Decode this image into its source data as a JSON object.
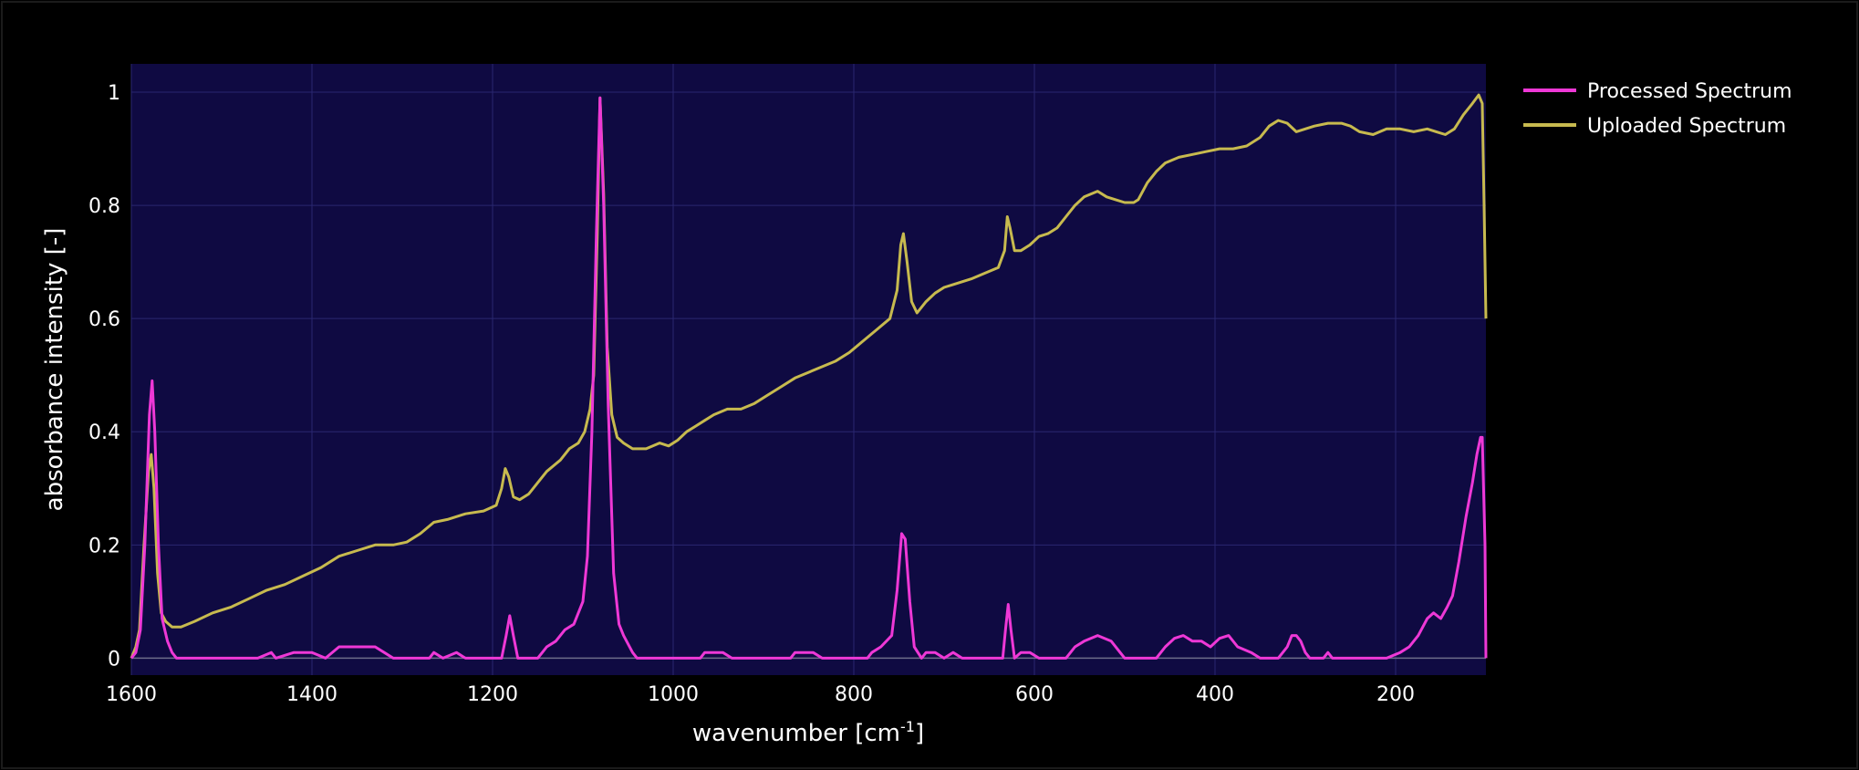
{
  "chart_data": {
    "type": "line",
    "title": "",
    "xlabel": "wavenumber [cm",
    "xlabel_sup": "-1",
    "xlabel_end": "]",
    "ylabel": "absorbance intensity [-]",
    "xlim": [
      1600,
      100
    ],
    "x_reversed": true,
    "ylim": [
      -0.03,
      1.05
    ],
    "xticks": [
      1600,
      1400,
      1200,
      1000,
      800,
      600,
      400,
      200
    ],
    "xtick_labels": [
      "1600",
      "1400",
      "1200",
      "1000",
      "800",
      "600",
      "400",
      "200"
    ],
    "yticks": [
      0,
      0.2,
      0.4,
      0.6,
      0.8,
      1
    ],
    "ytick_labels": [
      "0",
      "0.2",
      "0.4",
      "0.6",
      "0.8",
      "1"
    ],
    "grid": true,
    "legend_position": "top-right",
    "colors": {
      "plot_bg": "#0f0a42",
      "page_bg": "#000000"
    },
    "series": [
      {
        "name": "Processed Spectrum",
        "color": "#ee38d6",
        "points": [
          [
            1600,
            0
          ],
          [
            1595,
            0.01
          ],
          [
            1590,
            0.05
          ],
          [
            1585,
            0.2
          ],
          [
            1580,
            0.43
          ],
          [
            1577,
            0.49
          ],
          [
            1574,
            0.4
          ],
          [
            1570,
            0.2
          ],
          [
            1566,
            0.07
          ],
          [
            1560,
            0.03
          ],
          [
            1555,
            0.01
          ],
          [
            1550,
            0
          ],
          [
            1460,
            0
          ],
          [
            1445,
            0.01
          ],
          [
            1440,
            0
          ],
          [
            1420,
            0.01
          ],
          [
            1400,
            0.01
          ],
          [
            1385,
            0
          ],
          [
            1370,
            0.02
          ],
          [
            1355,
            0.02
          ],
          [
            1345,
            0.02
          ],
          [
            1330,
            0.02
          ],
          [
            1320,
            0.01
          ],
          [
            1310,
            0
          ],
          [
            1270,
            0
          ],
          [
            1265,
            0.01
          ],
          [
            1255,
            0
          ],
          [
            1240,
            0.01
          ],
          [
            1230,
            0
          ],
          [
            1190,
            0
          ],
          [
            1185,
            0.04
          ],
          [
            1181,
            0.075
          ],
          [
            1177,
            0.04
          ],
          [
            1172,
            0
          ],
          [
            1150,
            0
          ],
          [
            1145,
            0.01
          ],
          [
            1140,
            0.02
          ],
          [
            1130,
            0.03
          ],
          [
            1120,
            0.05
          ],
          [
            1110,
            0.06
          ],
          [
            1100,
            0.1
          ],
          [
            1095,
            0.18
          ],
          [
            1090,
            0.4
          ],
          [
            1085,
            0.75
          ],
          [
            1081,
            0.99
          ],
          [
            1077,
            0.8
          ],
          [
            1072,
            0.45
          ],
          [
            1066,
            0.15
          ],
          [
            1060,
            0.06
          ],
          [
            1055,
            0.04
          ],
          [
            1045,
            0.01
          ],
          [
            1040,
            0
          ],
          [
            970,
            0
          ],
          [
            965,
            0.01
          ],
          [
            955,
            0.01
          ],
          [
            945,
            0.01
          ],
          [
            935,
            0
          ],
          [
            870,
            0
          ],
          [
            865,
            0.01
          ],
          [
            855,
            0.01
          ],
          [
            845,
            0.01
          ],
          [
            835,
            0
          ],
          [
            785,
            0
          ],
          [
            780,
            0.01
          ],
          [
            770,
            0.02
          ],
          [
            758,
            0.04
          ],
          [
            752,
            0.12
          ],
          [
            747,
            0.22
          ],
          [
            743,
            0.21
          ],
          [
            738,
            0.1
          ],
          [
            733,
            0.02
          ],
          [
            725,
            0
          ],
          [
            720,
            0.01
          ],
          [
            710,
            0.01
          ],
          [
            700,
            0
          ],
          [
            690,
            0.01
          ],
          [
            680,
            0
          ],
          [
            635,
            0
          ],
          [
            632,
            0.05
          ],
          [
            629,
            0.095
          ],
          [
            626,
            0.05
          ],
          [
            622,
            0
          ],
          [
            615,
            0.01
          ],
          [
            605,
            0.01
          ],
          [
            595,
            0
          ],
          [
            565,
            0
          ],
          [
            555,
            0.02
          ],
          [
            545,
            0.03
          ],
          [
            530,
            0.04
          ],
          [
            515,
            0.03
          ],
          [
            505,
            0.01
          ],
          [
            500,
            0
          ],
          [
            465,
            0
          ],
          [
            455,
            0.02
          ],
          [
            445,
            0.035
          ],
          [
            435,
            0.04
          ],
          [
            425,
            0.03
          ],
          [
            415,
            0.03
          ],
          [
            405,
            0.02
          ],
          [
            395,
            0.035
          ],
          [
            385,
            0.04
          ],
          [
            375,
            0.02
          ],
          [
            360,
            0.01
          ],
          [
            350,
            0
          ],
          [
            330,
            0
          ],
          [
            325,
            0.01
          ],
          [
            320,
            0.02
          ],
          [
            315,
            0.04
          ],
          [
            310,
            0.04
          ],
          [
            305,
            0.03
          ],
          [
            300,
            0.01
          ],
          [
            295,
            0
          ],
          [
            280,
            0
          ],
          [
            275,
            0.01
          ],
          [
            270,
            0
          ],
          [
            210,
            0
          ],
          [
            195,
            0.01
          ],
          [
            185,
            0.02
          ],
          [
            175,
            0.04
          ],
          [
            165,
            0.07
          ],
          [
            158,
            0.08
          ],
          [
            150,
            0.07
          ],
          [
            143,
            0.09
          ],
          [
            137,
            0.11
          ],
          [
            130,
            0.17
          ],
          [
            122,
            0.25
          ],
          [
            115,
            0.31
          ],
          [
            110,
            0.36
          ],
          [
            106,
            0.39
          ],
          [
            104,
            0.39
          ],
          [
            101,
            0.2
          ],
          [
            100,
            0
          ]
        ]
      },
      {
        "name": "Uploaded Spectrum",
        "color": "#c7ba4f",
        "points": [
          [
            1600,
            0
          ],
          [
            1595,
            0.02
          ],
          [
            1591,
            0.05
          ],
          [
            1586,
            0.2
          ],
          [
            1581,
            0.33
          ],
          [
            1578,
            0.36
          ],
          [
            1575,
            0.3
          ],
          [
            1571,
            0.15
          ],
          [
            1567,
            0.08
          ],
          [
            1562,
            0.065
          ],
          [
            1555,
            0.055
          ],
          [
            1545,
            0.055
          ],
          [
            1530,
            0.065
          ],
          [
            1510,
            0.08
          ],
          [
            1490,
            0.09
          ],
          [
            1470,
            0.105
          ],
          [
            1450,
            0.12
          ],
          [
            1430,
            0.13
          ],
          [
            1410,
            0.145
          ],
          [
            1390,
            0.16
          ],
          [
            1370,
            0.18
          ],
          [
            1350,
            0.19
          ],
          [
            1330,
            0.2
          ],
          [
            1310,
            0.2
          ],
          [
            1295,
            0.205
          ],
          [
            1280,
            0.22
          ],
          [
            1265,
            0.24
          ],
          [
            1250,
            0.245
          ],
          [
            1230,
            0.255
          ],
          [
            1210,
            0.26
          ],
          [
            1196,
            0.27
          ],
          [
            1190,
            0.3
          ],
          [
            1186,
            0.335
          ],
          [
            1182,
            0.32
          ],
          [
            1177,
            0.285
          ],
          [
            1170,
            0.28
          ],
          [
            1160,
            0.29
          ],
          [
            1150,
            0.31
          ],
          [
            1140,
            0.33
          ],
          [
            1125,
            0.35
          ],
          [
            1115,
            0.37
          ],
          [
            1105,
            0.38
          ],
          [
            1098,
            0.4
          ],
          [
            1092,
            0.44
          ],
          [
            1088,
            0.5
          ],
          [
            1084,
            0.75
          ],
          [
            1081,
            0.99
          ],
          [
            1077,
            0.82
          ],
          [
            1073,
            0.55
          ],
          [
            1068,
            0.43
          ],
          [
            1062,
            0.39
          ],
          [
            1055,
            0.38
          ],
          [
            1045,
            0.37
          ],
          [
            1030,
            0.37
          ],
          [
            1015,
            0.38
          ],
          [
            1005,
            0.375
          ],
          [
            995,
            0.385
          ],
          [
            985,
            0.4
          ],
          [
            975,
            0.41
          ],
          [
            965,
            0.42
          ],
          [
            955,
            0.43
          ],
          [
            940,
            0.44
          ],
          [
            925,
            0.44
          ],
          [
            910,
            0.45
          ],
          [
            895,
            0.465
          ],
          [
            880,
            0.48
          ],
          [
            865,
            0.495
          ],
          [
            850,
            0.505
          ],
          [
            835,
            0.515
          ],
          [
            820,
            0.525
          ],
          [
            805,
            0.54
          ],
          [
            790,
            0.56
          ],
          [
            775,
            0.58
          ],
          [
            760,
            0.6
          ],
          [
            752,
            0.65
          ],
          [
            748,
            0.73
          ],
          [
            745,
            0.75
          ],
          [
            741,
            0.7
          ],
          [
            736,
            0.63
          ],
          [
            730,
            0.61
          ],
          [
            720,
            0.63
          ],
          [
            710,
            0.645
          ],
          [
            700,
            0.655
          ],
          [
            690,
            0.66
          ],
          [
            680,
            0.665
          ],
          [
            670,
            0.67
          ],
          [
            655,
            0.68
          ],
          [
            640,
            0.69
          ],
          [
            633,
            0.72
          ],
          [
            630,
            0.78
          ],
          [
            627,
            0.76
          ],
          [
            622,
            0.72
          ],
          [
            615,
            0.72
          ],
          [
            605,
            0.73
          ],
          [
            595,
            0.745
          ],
          [
            585,
            0.75
          ],
          [
            575,
            0.76
          ],
          [
            565,
            0.78
          ],
          [
            555,
            0.8
          ],
          [
            545,
            0.815
          ],
          [
            530,
            0.825
          ],
          [
            520,
            0.815
          ],
          [
            510,
            0.81
          ],
          [
            500,
            0.805
          ],
          [
            490,
            0.805
          ],
          [
            485,
            0.81
          ],
          [
            475,
            0.84
          ],
          [
            465,
            0.86
          ],
          [
            455,
            0.875
          ],
          [
            440,
            0.885
          ],
          [
            425,
            0.89
          ],
          [
            410,
            0.895
          ],
          [
            395,
            0.9
          ],
          [
            380,
            0.9
          ],
          [
            365,
            0.905
          ],
          [
            350,
            0.92
          ],
          [
            340,
            0.94
          ],
          [
            330,
            0.95
          ],
          [
            320,
            0.945
          ],
          [
            310,
            0.93
          ],
          [
            300,
            0.935
          ],
          [
            290,
            0.94
          ],
          [
            275,
            0.945
          ],
          [
            260,
            0.945
          ],
          [
            250,
            0.94
          ],
          [
            240,
            0.93
          ],
          [
            225,
            0.925
          ],
          [
            210,
            0.935
          ],
          [
            195,
            0.935
          ],
          [
            180,
            0.93
          ],
          [
            165,
            0.935
          ],
          [
            155,
            0.93
          ],
          [
            145,
            0.925
          ],
          [
            135,
            0.935
          ],
          [
            125,
            0.96
          ],
          [
            115,
            0.98
          ],
          [
            108,
            0.995
          ],
          [
            104,
            0.98
          ],
          [
            102,
            0.8
          ],
          [
            100,
            0.6
          ]
        ]
      }
    ]
  }
}
